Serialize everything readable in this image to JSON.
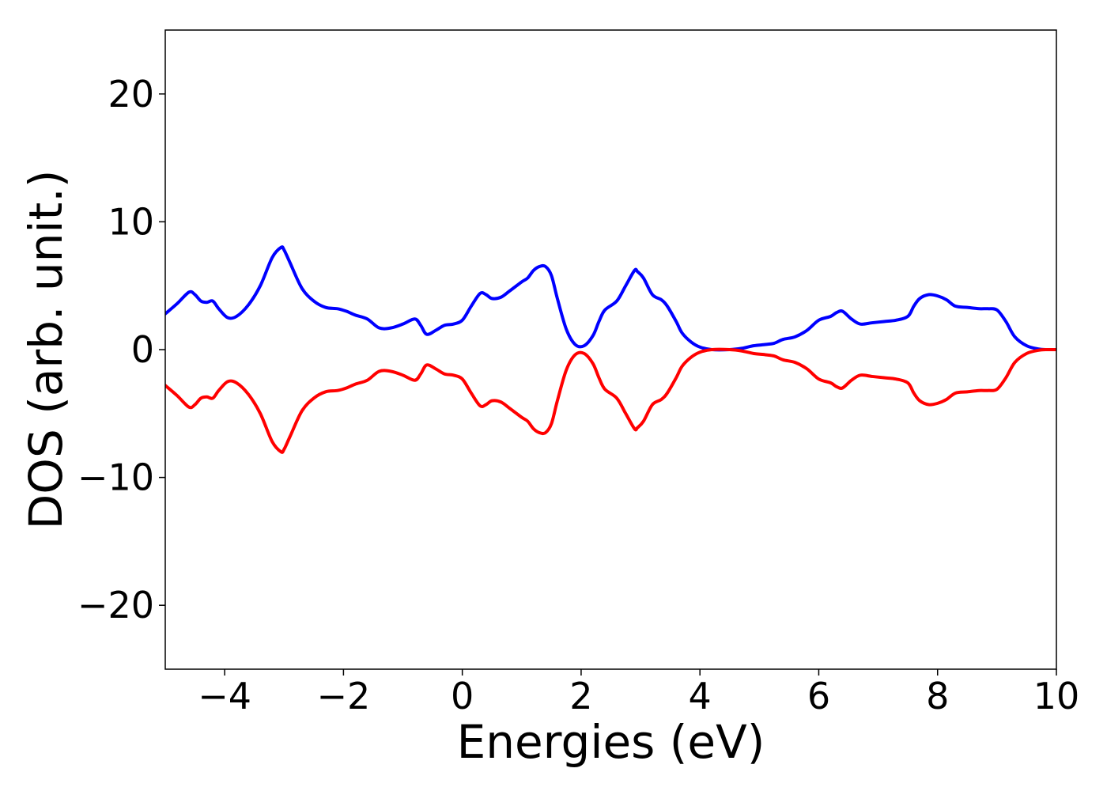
{
  "chart_data": {
    "type": "line",
    "title": "",
    "xlabel": "Energies (eV)",
    "ylabel": "DOS (arb. unit.)",
    "xlim": [
      -5,
      10
    ],
    "ylim": [
      -25,
      25
    ],
    "x_ticks": [
      -4,
      -2,
      0,
      2,
      4,
      6,
      8,
      10
    ],
    "y_ticks": [
      -20,
      -10,
      0,
      10,
      20
    ],
    "x_tick_labels": [
      "−4",
      "−2",
      "0",
      "2",
      "4",
      "6",
      "8",
      "10"
    ],
    "y_tick_labels": [
      "−20",
      "−10",
      "0",
      "10",
      "20"
    ],
    "grid": false,
    "series": [
      {
        "color": "#0000ff",
        "x": [
          -5.0,
          -4.8,
          -4.6,
          -4.5,
          -4.4,
          -4.3,
          -4.2,
          -4.1,
          -3.95,
          -3.8,
          -3.6,
          -3.4,
          -3.2,
          -3.05,
          -3.0,
          -2.9,
          -2.7,
          -2.5,
          -2.3,
          -2.1,
          -1.95,
          -1.8,
          -1.6,
          -1.4,
          -1.2,
          -1.0,
          -0.8,
          -0.7,
          -0.6,
          -0.45,
          -0.3,
          -0.15,
          0.0,
          0.15,
          0.3,
          0.4,
          0.5,
          0.65,
          0.8,
          1.0,
          1.1,
          1.2,
          1.3,
          1.4,
          1.5,
          1.6,
          1.75,
          1.9,
          2.05,
          2.2,
          2.3,
          2.4,
          2.6,
          2.75,
          2.9,
          2.95,
          3.05,
          3.2,
          3.35,
          3.45,
          3.6,
          3.7,
          3.85,
          4.0,
          4.2,
          4.5,
          4.7,
          4.9,
          5.1,
          5.25,
          5.4,
          5.6,
          5.8,
          6.0,
          6.2,
          6.3,
          6.4,
          6.55,
          6.7,
          6.9,
          7.1,
          7.3,
          7.5,
          7.6,
          7.7,
          7.85,
          8.0,
          8.15,
          8.3,
          8.5,
          8.7,
          8.85,
          9.0,
          9.15,
          9.3,
          9.5,
          9.7,
          9.85,
          10.0
        ],
        "y": [
          2.8,
          3.6,
          4.5,
          4.3,
          3.8,
          3.7,
          3.8,
          3.2,
          2.5,
          2.6,
          3.5,
          5.0,
          7.2,
          8.0,
          7.8,
          6.8,
          4.8,
          3.8,
          3.3,
          3.2,
          3.0,
          2.7,
          2.4,
          1.7,
          1.7,
          2.0,
          2.4,
          1.9,
          1.2,
          1.5,
          1.9,
          2.0,
          2.3,
          3.4,
          4.4,
          4.3,
          4.0,
          4.1,
          4.6,
          5.3,
          5.6,
          6.2,
          6.5,
          6.5,
          5.8,
          4.0,
          1.6,
          0.4,
          0.3,
          1.1,
          2.2,
          3.1,
          3.8,
          5.0,
          6.2,
          6.1,
          5.6,
          4.3,
          3.9,
          3.4,
          2.2,
          1.3,
          0.6,
          0.2,
          0.0,
          0.0,
          0.1,
          0.3,
          0.4,
          0.5,
          0.8,
          1.0,
          1.5,
          2.3,
          2.6,
          2.9,
          3.0,
          2.4,
          2.0,
          2.1,
          2.2,
          2.3,
          2.6,
          3.4,
          4.0,
          4.3,
          4.2,
          3.9,
          3.4,
          3.3,
          3.2,
          3.2,
          3.1,
          2.2,
          1.0,
          0.3,
          0.05,
          0.0,
          0.0
        ]
      },
      {
        "color": "#ff0000",
        "x": [
          -5.0,
          -4.8,
          -4.6,
          -4.5,
          -4.4,
          -4.3,
          -4.2,
          -4.1,
          -3.95,
          -3.8,
          -3.6,
          -3.4,
          -3.2,
          -3.05,
          -3.0,
          -2.9,
          -2.7,
          -2.5,
          -2.3,
          -2.1,
          -1.95,
          -1.8,
          -1.6,
          -1.4,
          -1.2,
          -1.0,
          -0.8,
          -0.7,
          -0.6,
          -0.45,
          -0.3,
          -0.15,
          0.0,
          0.15,
          0.3,
          0.4,
          0.5,
          0.65,
          0.8,
          1.0,
          1.1,
          1.2,
          1.3,
          1.4,
          1.5,
          1.6,
          1.75,
          1.9,
          2.05,
          2.2,
          2.3,
          2.4,
          2.6,
          2.75,
          2.9,
          2.95,
          3.05,
          3.2,
          3.35,
          3.45,
          3.6,
          3.7,
          3.85,
          4.0,
          4.2,
          4.5,
          4.7,
          4.9,
          5.1,
          5.25,
          5.4,
          5.6,
          5.8,
          6.0,
          6.2,
          6.3,
          6.4,
          6.55,
          6.7,
          6.9,
          7.1,
          7.3,
          7.5,
          7.6,
          7.7,
          7.85,
          8.0,
          8.15,
          8.3,
          8.5,
          8.7,
          8.85,
          9.0,
          9.15,
          9.3,
          9.5,
          9.7,
          9.85,
          10.0
        ],
        "y": [
          -2.8,
          -3.6,
          -4.5,
          -4.3,
          -3.8,
          -3.7,
          -3.8,
          -3.2,
          -2.5,
          -2.6,
          -3.5,
          -5.0,
          -7.2,
          -8.0,
          -7.8,
          -6.8,
          -4.8,
          -3.8,
          -3.3,
          -3.2,
          -3.0,
          -2.7,
          -2.4,
          -1.7,
          -1.7,
          -2.0,
          -2.4,
          -1.9,
          -1.2,
          -1.5,
          -1.9,
          -2.0,
          -2.3,
          -3.4,
          -4.4,
          -4.3,
          -4.0,
          -4.1,
          -4.6,
          -5.3,
          -5.6,
          -6.2,
          -6.5,
          -6.5,
          -5.8,
          -4.0,
          -1.6,
          -0.4,
          -0.3,
          -1.1,
          -2.2,
          -3.1,
          -3.8,
          -5.0,
          -6.2,
          -6.1,
          -5.6,
          -4.3,
          -3.9,
          -3.4,
          -2.2,
          -1.3,
          -0.6,
          -0.2,
          0.0,
          0.0,
          -0.1,
          -0.3,
          -0.4,
          -0.5,
          -0.8,
          -1.0,
          -1.5,
          -2.3,
          -2.6,
          -2.9,
          -3.0,
          -2.4,
          -2.0,
          -2.1,
          -2.2,
          -2.3,
          -2.6,
          -3.4,
          -4.0,
          -4.3,
          -4.2,
          -3.9,
          -3.4,
          -3.3,
          -3.2,
          -3.2,
          -3.1,
          -2.2,
          -1.0,
          -0.3,
          -0.05,
          0.0,
          0.0
        ]
      }
    ]
  }
}
